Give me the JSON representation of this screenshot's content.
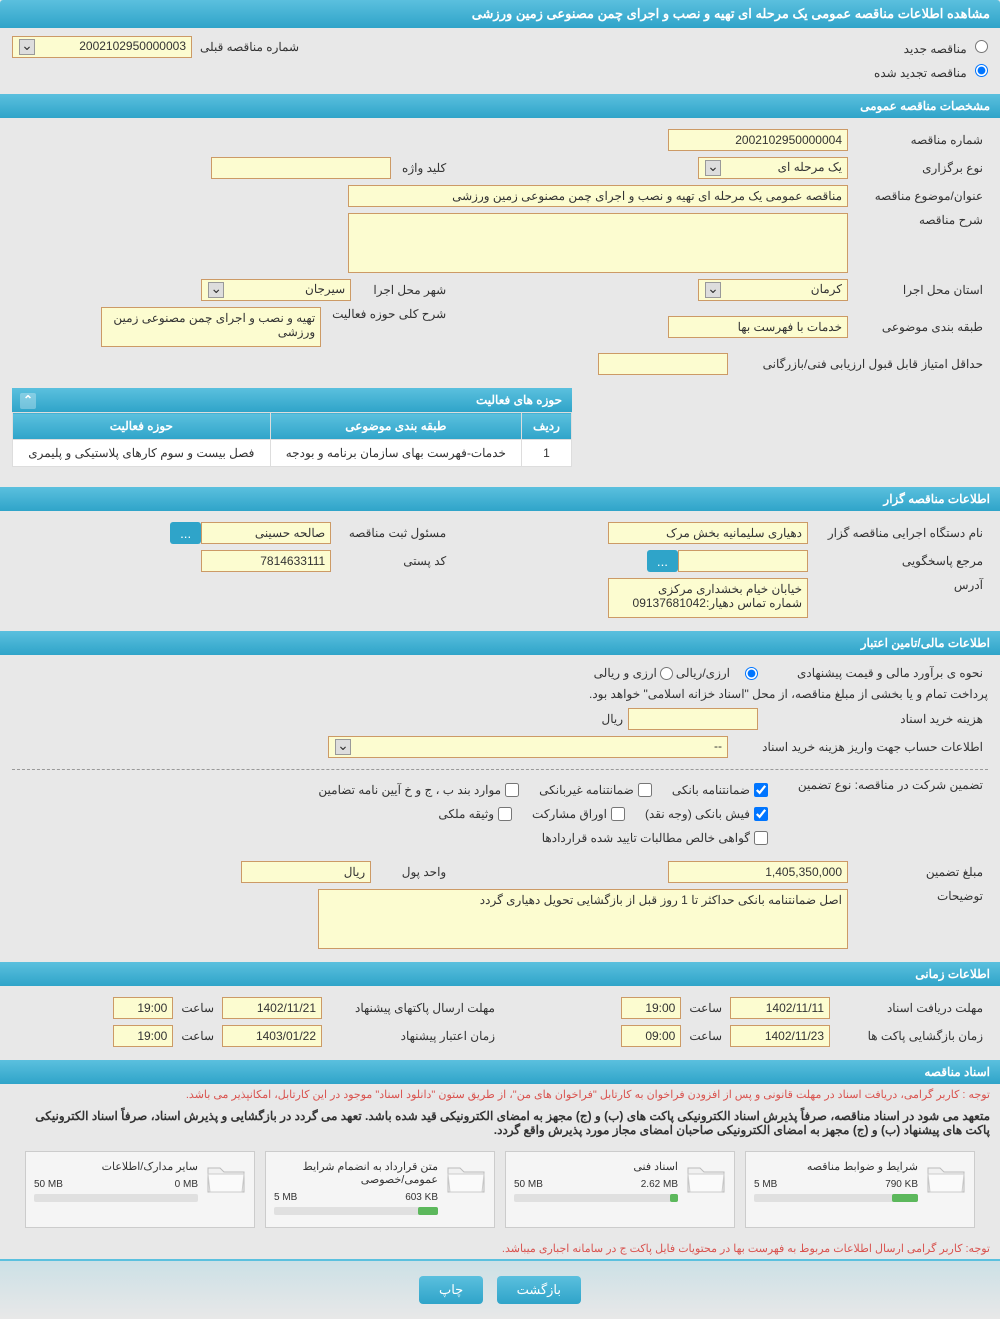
{
  "page_title": "مشاهده اطلاعات مناقصه عمومی یک مرحله ای تهیه و نصب و اجرای چمن مصنوعی زمین ورزشی",
  "tender_type": {
    "new": {
      "label": "مناقصه جدید",
      "checked": false
    },
    "renewed": {
      "label": "مناقصه تجدید شده",
      "checked": true
    }
  },
  "prev_number": {
    "label": "شماره مناقصه قبلی",
    "value": "2002102950000003"
  },
  "sections": {
    "general": "مشخصات مناقصه عمومی",
    "activity": "حوزه های فعالیت",
    "organizer": "اطلاعات مناقصه گزار",
    "financial": "اطلاعات مالی/تامین اعتبار",
    "time": "اطلاعات زمانی",
    "documents": "اسناد مناقصه"
  },
  "general": {
    "tender_number": {
      "label": "شماره مناقصه",
      "value": "2002102950000004"
    },
    "holding_type": {
      "label": "نوع برگزاری",
      "value": "یک مرحله ای"
    },
    "keyword": {
      "label": "کلید واژه",
      "value": ""
    },
    "subject": {
      "label": "عنوان/موضوع مناقصه",
      "value": "مناقصه عمومی یک مرحله ای تهیه و نصب و اجرای چمن مصنوعی زمین ورزشی"
    },
    "description": {
      "label": "شرح مناقصه",
      "value": ""
    },
    "province": {
      "label": "استان محل اجرا",
      "value": "کرمان"
    },
    "city": {
      "label": "شهر محل اجرا",
      "value": "سیرجان"
    },
    "category": {
      "label": "طبقه بندی موضوعی",
      "value": "خدمات با فهرست بها"
    },
    "activity_scope": {
      "label": "شرح کلی حوزه فعالیت",
      "value": "تهیه و نصب و اجرای چمن مصنوعی زمین ورزشی"
    },
    "min_score": {
      "label": "حداقل امتیاز قابل قبول ارزیابی فنی/بازرگانی",
      "value": ""
    }
  },
  "activity_table": {
    "headers": [
      "ردیف",
      "طبقه بندی موضوعی",
      "حوزه فعالیت"
    ],
    "rows": [
      [
        "1",
        "خدمات-فهرست بهای سازمان برنامه و بودجه",
        "فصل بیست و سوم کارهای پلاستیکی و پلیمری"
      ]
    ]
  },
  "organizer": {
    "agency": {
      "label": "نام دستگاه اجرایی مناقصه گزار",
      "value": "دهیاری سلیمانیه بخش مرک"
    },
    "registrar": {
      "label": "مسئول ثبت مناقصه",
      "value": "صالحه حسینی"
    },
    "responder": {
      "label": "مرجع پاسخگویی",
      "value": ""
    },
    "postal_code": {
      "label": "کد پستی",
      "value": "7814633111"
    },
    "address": {
      "label": "آدرس",
      "value": "خیابان خیام بخشداری مرکزی\nشماره تماس دهیار:09137681042"
    },
    "btn_more": "..."
  },
  "financial": {
    "estimate_method": {
      "label": "نحوه ی برآورد مالی و قیمت پیشنهادی",
      "options": [
        "ارزی/ریالی",
        "ارزی و ریالی"
      ],
      "selected": 0
    },
    "treasury_note": "پرداخت تمام و یا بخشی از مبلغ مناقصه، از محل \"اسناد خزانه اسلامی\" خواهد بود.",
    "purchase_cost": {
      "label": "هزینه خرید اسناد",
      "value": "",
      "unit": "ریال"
    },
    "account_info": {
      "label": "اطلاعات حساب جهت واریز هزینه خرید اسناد",
      "value": "--"
    },
    "guarantee_type_label": "تضمین شرکت در مناقصه:   نوع تضمین",
    "guarantee_options": [
      {
        "label": "ضمانتنامه بانکی",
        "checked": true
      },
      {
        "label": "ضمانتنامه غیربانکی",
        "checked": false
      },
      {
        "label": "موارد بند ب ، ج و خ آیین نامه تضامین",
        "checked": false
      },
      {
        "label": "فیش بانکی (وجه نقد)",
        "checked": true
      },
      {
        "label": "اوراق مشارکت",
        "checked": false
      },
      {
        "label": "وثیقه ملکی",
        "checked": false
      },
      {
        "label": "گواهی خالص مطالبات تایید شده قراردادها",
        "checked": false
      }
    ],
    "guarantee_amount": {
      "label": "مبلغ تضمین",
      "value": "1,405,350,000",
      "currency_label": "واحد پول",
      "currency": "ریال"
    },
    "notes": {
      "label": "توضیحات",
      "value": "اصل ضمانتنامه بانکی حداکثر تا 1 روز قبل از بازگشایی تحویل دهیاری گردد"
    }
  },
  "time_info": {
    "doc_receive": {
      "label": "مهلت دریافت اسناد",
      "date": "1402/11/11",
      "time": "19:00"
    },
    "proposal_send": {
      "label": "مهلت ارسال پاکتهای پیشنهاد",
      "date": "1402/11/21",
      "time": "19:00"
    },
    "envelope_open": {
      "label": "زمان بازگشایی پاکت ها",
      "date": "1402/11/23",
      "time": "09:00"
    },
    "proposal_validity": {
      "label": "زمان اعتبار پیشنهاد",
      "date": "1403/01/22",
      "time": "19:00"
    },
    "time_label": "ساعت"
  },
  "documents_notes": {
    "note1": "توجه : کاربر گرامی، دریافت اسناد در مهلت قانونی و پس از افزودن فراخوان به کارتابل \"فراخوان های من\"، از طریق ستون \"دانلود اسناد\" موجود در این کارتابل، امکانپذیر می باشد.",
    "note2": "متعهد می شود در اسناد مناقصه، صرفاً پذیرش اسناد الکترونیکی پاکت های (ب) و (ج) مجهز به امضای الکترونیکی قید شده باشد. تعهد می گردد در بازگشایی و پذیرش اسناد، صرفاً اسناد الکترونیکی پاکت های پیشنهاد (ب) و (ج) مجهز به امضای الکترونیکی صاحبان امضای مجاز مورد پذیرش واقع گردد.",
    "note3": "توجه: کاربر گرامی ارسال اطلاعات مربوط به فهرست بها در محتویات فایل پاکت ج در سامانه اجباری میباشد."
  },
  "files": [
    {
      "title": "شرایط و ضوابط مناقصه",
      "used": "790 KB",
      "max": "5 MB",
      "pct": 16
    },
    {
      "title": "اسناد فنی",
      "used": "2.62 MB",
      "max": "50 MB",
      "pct": 5
    },
    {
      "title": "متن قرارداد به انضمام شرایط عمومی/خصوصی",
      "used": "603 KB",
      "max": "5 MB",
      "pct": 12
    },
    {
      "title": "سایر مدارک/اطلاعات",
      "used": "0 MB",
      "max": "50 MB",
      "pct": 0
    }
  ],
  "buttons": {
    "back": "بازگشت",
    "print": "چاپ"
  },
  "colors": {
    "header_grad_top": "#5bc0de",
    "header_grad_bot": "#2fa4c9",
    "input_bg": "#fcfcd0",
    "input_border": "#cc9a66",
    "page_bg": "#e8e8e8",
    "red": "#d9534f",
    "green": "#5cb85c"
  }
}
